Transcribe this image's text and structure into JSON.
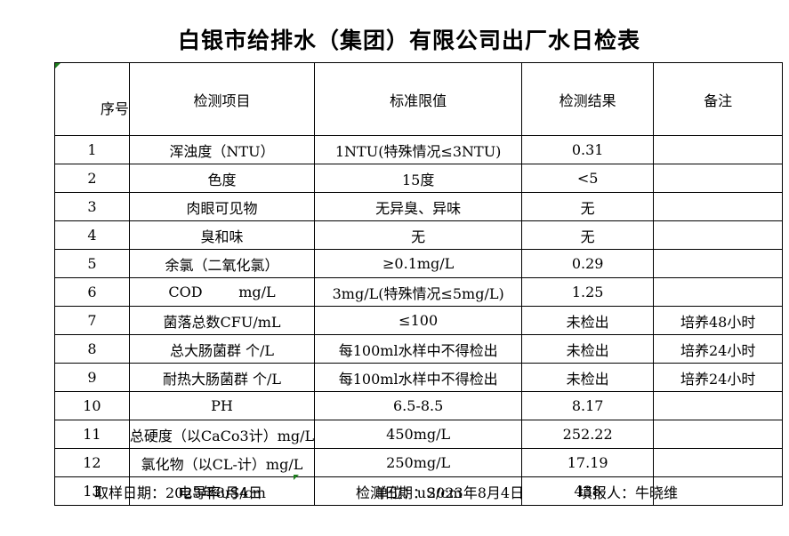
{
  "page": {
    "title": "白银市给排水（集团）有限公司出厂水日检表"
  },
  "table": {
    "headers": [
      "序号",
      "检测项目",
      "标准限值",
      "检测结果",
      "备注"
    ],
    "rows": [
      {
        "seq": "1",
        "item": "浑浊度（NTU）",
        "standard": "1NTU(特殊情况≤3NTU)",
        "result": "0.31",
        "remark": ""
      },
      {
        "seq": "2",
        "item": "色度",
        "standard": "15度",
        "result": "<5",
        "remark": ""
      },
      {
        "seq": "3",
        "item": "肉眼可见物",
        "standard": "无异臭、异味",
        "result": "无",
        "remark": ""
      },
      {
        "seq": "4",
        "item": "臭和味",
        "standard": "无",
        "result": "无",
        "remark": ""
      },
      {
        "seq": "5",
        "item": "余氯（二氧化氯）",
        "standard": "≥0.1mg/L",
        "result": "0.29",
        "remark": ""
      },
      {
        "seq": "6",
        "item": "COD        mg/L",
        "standard": "3mg/L(特殊情况≤5mg/L)",
        "result": "1.25",
        "remark": ""
      },
      {
        "seq": "7",
        "item": "菌落总数CFU/mL",
        "standard": "≤100",
        "result": "未检出",
        "remark": "培养48小时"
      },
      {
        "seq": "8",
        "item": "总大肠菌群 个/L",
        "standard": "每100ml水样中不得检出",
        "result": "未检出",
        "remark": "培养24小时"
      },
      {
        "seq": "9",
        "item": "耐热大肠菌群 个/L",
        "standard": "每100ml水样中不得检出",
        "result": "未检出",
        "remark": "培养24小时"
      },
      {
        "seq": "10",
        "item": "PH",
        "standard": "6.5-8.5",
        "result": "8.17",
        "remark": ""
      },
      {
        "seq": "11",
        "item": "总硬度（以CaCo3计）mg/L",
        "standard": "450mg/L",
        "result": "252.22",
        "remark": ""
      },
      {
        "seq": "12",
        "item": "氯化物（以CL-计）mg/L",
        "standard": "250mg/L",
        "result": "17.19",
        "remark": ""
      },
      {
        "seq": "13",
        "item": "电导率uS/cm",
        "standard": "单位：uS/cm",
        "result": "438",
        "remark": ""
      }
    ]
  },
  "footer": {
    "sampling_date": "取样日期：2023年8月4日",
    "test_date": "检测日期：2023年8月4日",
    "reporter": "填报人：牛晓维"
  },
  "colors": {
    "error_indicator_green": "#1e7e1e",
    "border_black": "#000000"
  }
}
